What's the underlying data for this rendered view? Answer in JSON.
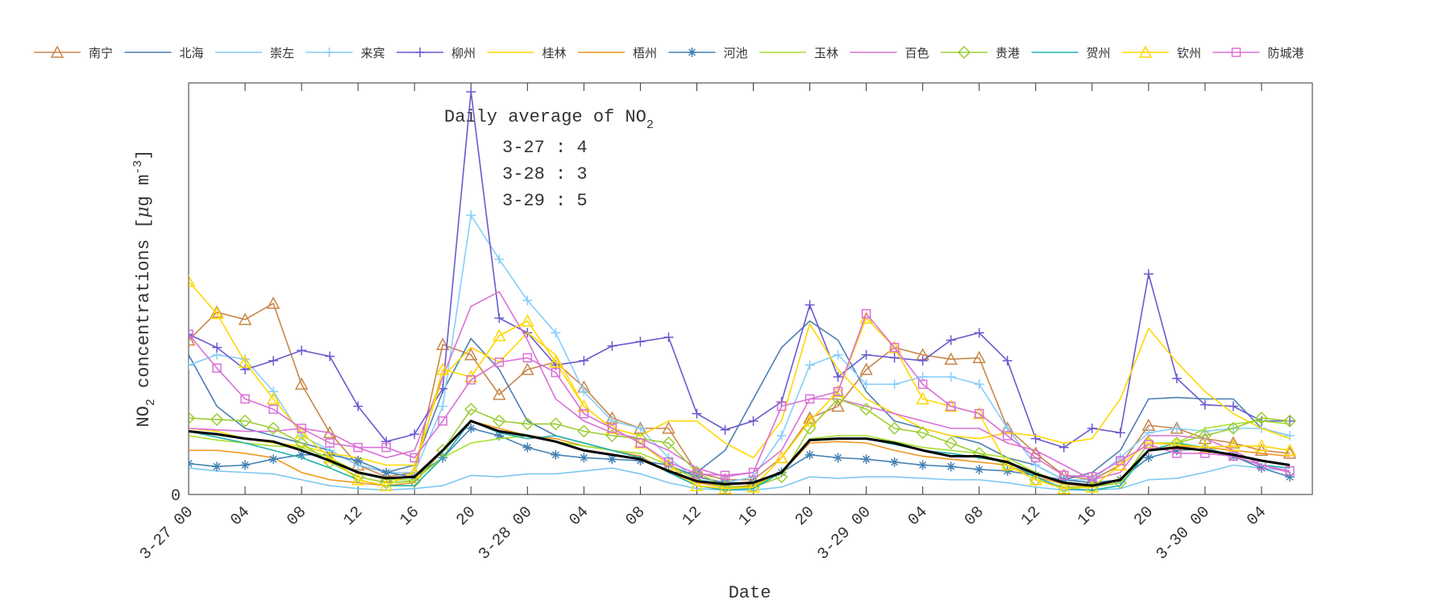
{
  "chart_data": {
    "type": "line",
    "xlabel": "Date",
    "ylabel_parts": [
      "NO",
      "2",
      " concentrations [",
      "μ",
      "g m",
      "-3",
      "]"
    ],
    "annotation": {
      "title": "Daily average of NO",
      "title_sub": "2",
      "lines": [
        "3-27 : 4",
        "3-28 : 3",
        "3-29 : 5"
      ]
    },
    "x": [
      0,
      2,
      4,
      6,
      8,
      10,
      12,
      14,
      16,
      18,
      20,
      22,
      24,
      26,
      28,
      30,
      32,
      34,
      36,
      38,
      40,
      42,
      44,
      46,
      48,
      50,
      52,
      54,
      56,
      58,
      60,
      62,
      64,
      66,
      68,
      70,
      72,
      74,
      76,
      78
    ],
    "xlim": [
      0,
      79.6
    ],
    "xticks": [
      {
        "value": 0,
        "label": "3-27 00"
      },
      {
        "value": 4,
        "label": "04"
      },
      {
        "value": 8,
        "label": "08"
      },
      {
        "value": 12,
        "label": "12"
      },
      {
        "value": 16,
        "label": "16"
      },
      {
        "value": 20,
        "label": "20"
      },
      {
        "value": 24,
        "label": "3-28 00"
      },
      {
        "value": 28,
        "label": "04"
      },
      {
        "value": 32,
        "label": "08"
      },
      {
        "value": 36,
        "label": "12"
      },
      {
        "value": 40,
        "label": "16"
      },
      {
        "value": 44,
        "label": "20"
      },
      {
        "value": 48,
        "label": "3-29 00"
      },
      {
        "value": 52,
        "label": "04"
      },
      {
        "value": 56,
        "label": "08"
      },
      {
        "value": 60,
        "label": "12"
      },
      {
        "value": 64,
        "label": "16"
      },
      {
        "value": 68,
        "label": "20"
      },
      {
        "value": 72,
        "label": "3-30 00"
      },
      {
        "value": 76,
        "label": "04"
      }
    ],
    "ylim": [
      0,
      28
    ],
    "yticks": [
      0
    ],
    "series": [
      {
        "name": "南宁",
        "color": "#c8864a",
        "marker": "triangle",
        "values": [
          10.5,
          12.4,
          11.9,
          13.0,
          7.5,
          4.2,
          2.0,
          1.2,
          1.5,
          10.2,
          9.5,
          6.8,
          8.5,
          9.0,
          7.3,
          5.2,
          4.5,
          4.5,
          1.5,
          1.0,
          1.0,
          2.5,
          5.2,
          6.0,
          8.5,
          10.0,
          9.5,
          9.2,
          9.3,
          4.5,
          2.8,
          1.3,
          1.0,
          2.0,
          4.7,
          4.5,
          3.8,
          3.5,
          3.0,
          2.8
        ]
      },
      {
        "name": "北海",
        "color": "#4a7fb5",
        "marker": "none",
        "values": [
          9.5,
          6.0,
          4.5,
          4.0,
          3.5,
          3.0,
          2.0,
          1.5,
          2.0,
          7.0,
          10.6,
          8.5,
          5.0,
          4.0,
          3.5,
          3.0,
          2.5,
          1.5,
          1.5,
          3.0,
          6.5,
          10.0,
          11.8,
          10.5,
          7.0,
          5.0,
          4.5,
          4.0,
          3.5,
          2.5,
          2.0,
          1.0,
          1.5,
          3.0,
          6.5,
          6.6,
          6.5,
          6.5,
          4.5,
          4.0
        ]
      },
      {
        "name": "崇左",
        "color": "#7ec8f0",
        "marker": "none",
        "values": [
          1.8,
          1.6,
          1.5,
          1.4,
          1.0,
          0.6,
          0.4,
          0.3,
          0.4,
          0.6,
          1.3,
          1.2,
          1.4,
          1.4,
          1.6,
          1.8,
          1.4,
          0.8,
          0.4,
          0.3,
          0.3,
          0.5,
          1.2,
          1.1,
          1.2,
          1.2,
          1.1,
          1.0,
          1.0,
          0.8,
          0.5,
          0.3,
          0.3,
          0.4,
          1.0,
          1.1,
          1.5,
          2.0,
          1.8,
          1.6
        ]
      },
      {
        "name": "来宾",
        "color": "#87cefa",
        "marker": "plus",
        "values": [
          8.8,
          9.5,
          9.2,
          7.0,
          4.0,
          3.0,
          2.0,
          1.5,
          1.5,
          6.0,
          19.0,
          16.0,
          13.2,
          11.0,
          7.0,
          5.0,
          4.5,
          2.5,
          1.0,
          0.8,
          1.2,
          4.0,
          8.8,
          9.5,
          7.5,
          7.5,
          8.0,
          8.0,
          7.5,
          4.5,
          2.0,
          1.0,
          1.0,
          2.5,
          4.2,
          4.5,
          4.3,
          4.5,
          4.5,
          4.0
        ]
      },
      {
        "name": "柳州",
        "color": "#6a5acd",
        "marker": "plus",
        "values": [
          10.9,
          10.0,
          8.5,
          9.1,
          9.8,
          9.4,
          6.0,
          3.6,
          4.1,
          7.2,
          27.4,
          12.0,
          11.0,
          8.8,
          9.1,
          10.1,
          10.4,
          10.7,
          5.5,
          4.4,
          5.0,
          6.3,
          12.9,
          8.0,
          9.5,
          9.3,
          9.1,
          10.5,
          11.0,
          9.1,
          3.8,
          3.2,
          4.5,
          4.2,
          15.0,
          7.9,
          6.1,
          6.0,
          5.0,
          5.0
        ]
      },
      {
        "name": "桂林",
        "color": "#ffd700",
        "marker": "none",
        "values": [
          4.5,
          4.3,
          3.8,
          3.5,
          3.3,
          2.8,
          2.5,
          2.0,
          2.0,
          8.0,
          10.0,
          9.0,
          11.0,
          9.5,
          6.0,
          4.5,
          4.0,
          5.0,
          5.0,
          3.5,
          2.5,
          5.0,
          11.6,
          8.5,
          6.5,
          5.5,
          4.5,
          4.0,
          3.8,
          4.2,
          4.0,
          3.5,
          3.8,
          6.5,
          11.3,
          9.0,
          7.0,
          5.5,
          4.5,
          3.8
        ]
      },
      {
        "name": "梧州",
        "color": "#f0961e",
        "marker": "none",
        "values": [
          3.0,
          3.0,
          2.8,
          2.5,
          1.5,
          1.0,
          0.8,
          0.6,
          0.8,
          3.0,
          5.0,
          4.5,
          4.0,
          3.8,
          3.3,
          3.0,
          2.6,
          1.5,
          0.8,
          0.5,
          0.6,
          1.5,
          3.5,
          3.6,
          3.5,
          3.0,
          2.6,
          2.4,
          2.2,
          2.0,
          1.2,
          0.7,
          0.5,
          1.0,
          3.0,
          3.3,
          3.2,
          3.0,
          2.8,
          2.6
        ]
      },
      {
        "name": "河池",
        "color": "#4682b4",
        "marker": "star",
        "values": [
          2.1,
          1.9,
          2.0,
          2.4,
          2.7,
          2.7,
          2.3,
          1.5,
          1.2,
          2.5,
          4.5,
          4.0,
          3.2,
          2.7,
          2.5,
          2.4,
          2.3,
          2.0,
          1.2,
          0.8,
          0.8,
          1.5,
          2.7,
          2.5,
          2.4,
          2.2,
          2.0,
          1.9,
          1.7,
          1.6,
          1.3,
          1.0,
          0.8,
          1.0,
          2.5,
          3.0,
          3.1,
          2.6,
          1.8,
          1.2
        ]
      },
      {
        "name": "玉林",
        "color": "#a6e22e",
        "marker": "none",
        "values": [
          4.0,
          3.7,
          3.5,
          3.3,
          3.2,
          2.5,
          1.5,
          1.0,
          1.0,
          2.5,
          3.5,
          3.8,
          4.0,
          3.6,
          3.3,
          3.0,
          2.8,
          2.0,
          1.0,
          0.5,
          0.5,
          1.5,
          3.8,
          4.0,
          4.0,
          3.6,
          3.2,
          3.0,
          2.8,
          2.5,
          1.5,
          0.8,
          0.5,
          0.8,
          3.0,
          3.5,
          4.5,
          4.8,
          5.0,
          4.8
        ]
      },
      {
        "name": "百色",
        "color": "#da70d6",
        "marker": "none",
        "values": [
          4.5,
          4.4,
          4.3,
          4.3,
          4.5,
          4.2,
          3.2,
          2.5,
          3.0,
          8.0,
          12.8,
          13.8,
          10.5,
          6.5,
          5.0,
          4.2,
          3.8,
          3.0,
          1.8,
          1.2,
          1.5,
          3.0,
          6.5,
          6.5,
          6.0,
          5.5,
          5.0,
          4.5,
          4.5,
          3.5,
          3.0,
          2.0,
          1.0,
          1.5,
          4.0,
          4.0,
          3.8,
          3.0,
          2.0,
          1.5
        ]
      },
      {
        "name": "贵港",
        "color": "#9acd32",
        "marker": "diamond",
        "values": [
          5.2,
          5.1,
          5.0,
          4.5,
          3.5,
          2.2,
          1.2,
          0.8,
          0.9,
          3.0,
          5.8,
          5.0,
          4.8,
          4.8,
          4.3,
          4.0,
          3.8,
          3.5,
          1.5,
          0.5,
          0.5,
          1.2,
          4.5,
          6.5,
          5.8,
          4.5,
          4.2,
          3.5,
          2.8,
          2.0,
          1.0,
          0.5,
          0.5,
          0.8,
          3.5,
          3.5,
          4.0,
          4.5,
          5.2,
          5.0
        ]
      },
      {
        "name": "贺州",
        "color": "#20b2aa",
        "marker": "none",
        "values": [
          4.3,
          3.9,
          3.5,
          3.0,
          2.5,
          1.8,
          1.0,
          0.6,
          0.6,
          2.5,
          5.0,
          4.2,
          3.8,
          4.0,
          3.5,
          3.0,
          2.5,
          1.5,
          0.6,
          0.3,
          0.4,
          1.5,
          3.7,
          3.8,
          3.8,
          3.4,
          3.0,
          2.8,
          2.5,
          2.2,
          1.2,
          0.4,
          0.3,
          0.6,
          3.0,
          3.5,
          3.2,
          2.6,
          2.0,
          1.8
        ]
      },
      {
        "name": "钦州",
        "color": "#ffd700",
        "marker": "triangle",
        "values": [
          14.5,
          12.3,
          9.0,
          6.5,
          4.2,
          2.5,
          1.0,
          0.6,
          1.5,
          8.5,
          8.0,
          10.8,
          11.8,
          9.0,
          6.0,
          4.5,
          3.5,
          2.0,
          0.6,
          0.4,
          0.5,
          2.5,
          5.0,
          7.0,
          12.0,
          10.0,
          6.5,
          6.0,
          5.5,
          2.0,
          1.0,
          0.4,
          0.5,
          2.0,
          3.5,
          3.4,
          3.2,
          3.3,
          3.3,
          3.0
        ]
      },
      {
        "name": "防城港",
        "color": "#da70d6",
        "marker": "square",
        "values": [
          10.9,
          8.6,
          6.5,
          5.8,
          4.5,
          3.5,
          3.2,
          3.2,
          2.5,
          5.0,
          7.8,
          9.0,
          9.3,
          8.3,
          5.5,
          4.5,
          3.5,
          2.2,
          1.4,
          1.3,
          1.5,
          6.0,
          6.5,
          7.0,
          12.3,
          10.0,
          7.5,
          6.0,
          5.5,
          4.0,
          2.5,
          1.3,
          1.2,
          2.3,
          3.4,
          2.8,
          2.8,
          2.6,
          2.0,
          1.6
        ]
      },
      {
        "color": "#000000",
        "marker": "none",
        "width": 3,
        "values": [
          4.3,
          4.1,
          3.8,
          3.6,
          3.0,
          2.3,
          1.5,
          1.1,
          1.2,
          3.0,
          5.0,
          4.3,
          4.0,
          3.6,
          3.0,
          2.7,
          2.4,
          1.6,
          0.9,
          0.7,
          0.8,
          1.5,
          3.7,
          3.8,
          3.8,
          3.5,
          3.0,
          2.6,
          2.6,
          2.2,
          1.4,
          0.8,
          0.6,
          1.0,
          3.0,
          3.2,
          3.0,
          2.7,
          2.3,
          2.0
        ]
      }
    ]
  }
}
